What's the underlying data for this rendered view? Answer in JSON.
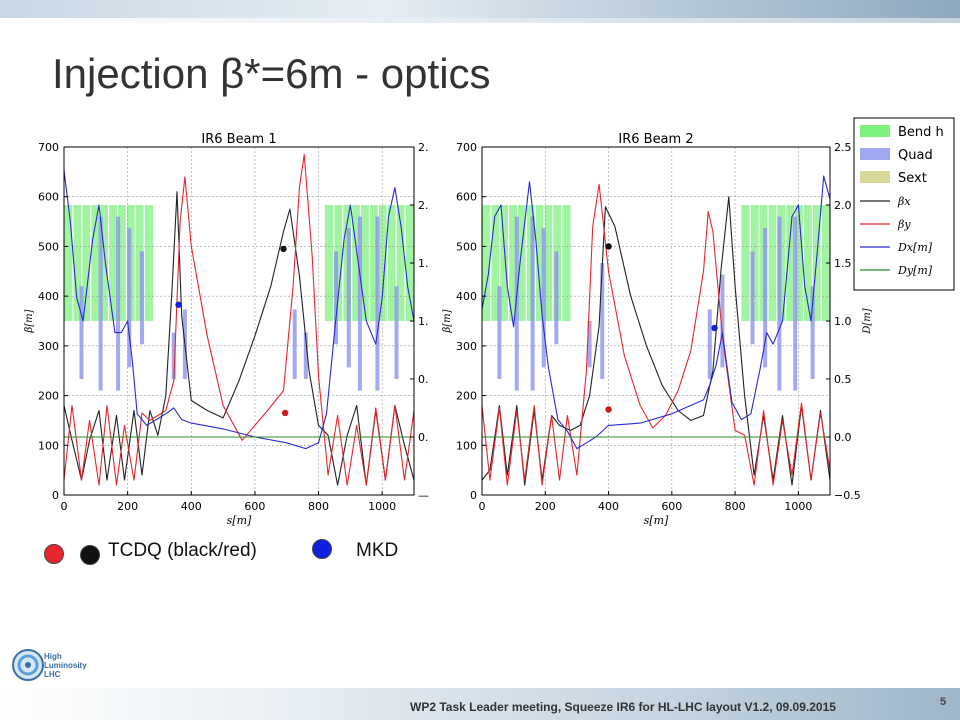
{
  "slide": {
    "title": "Injection β*=6m - optics",
    "footer": "WP2 Task Leader meeting, Squeeze IR6 for HL-LHC layout V1.2, 09.09.2015",
    "page_number": "5",
    "logo_text": [
      "High",
      "Luminosity",
      "LHC"
    ]
  },
  "marker_legend": {
    "tcdq_label": "TCDQ (black/red)",
    "mkd_label": "MKD",
    "colors": {
      "red": "#e8262b",
      "black": "#111111",
      "blue": "#1020e0"
    }
  },
  "legend": {
    "entries": [
      {
        "label": "Bend h",
        "kind": "patch",
        "color": "#7ef07e"
      },
      {
        "label": "Quad",
        "kind": "patch",
        "color": "#9fa8f0"
      },
      {
        "label": "Sext",
        "kind": "patch",
        "color": "#d8d89a"
      },
      {
        "label": "βx",
        "kind": "line",
        "color": "#222222"
      },
      {
        "label": "βy",
        "kind": "line",
        "color": "#e8262b"
      },
      {
        "label": "Dx[m]",
        "kind": "line",
        "color": "#2a2ad0"
      },
      {
        "label": "Dy[m]",
        "kind": "line",
        "color": "#2e8b2e"
      }
    ]
  },
  "chart_data": [
    {
      "type": "line",
      "title": "IR6 Beam 1",
      "xlabel": "s[m]",
      "ylabel": "β[m]",
      "y2label": "",
      "xlim": [
        0,
        1100
      ],
      "ylim": [
        0,
        700
      ],
      "y2lim": [
        -0.5,
        2.5
      ],
      "xticks": [
        "0",
        "200",
        "400",
        "600",
        "800",
        "1000"
      ],
      "yticks": [
        "0",
        "100",
        "200",
        "300",
        "400",
        "500",
        "600",
        "700"
      ],
      "y2ticks": [
        "—",
        "0.",
        "0.",
        "1.",
        "1.",
        "2.",
        "2."
      ],
      "grid": true,
      "bends": [
        [
          0,
          280
        ],
        [
          820,
          1100
        ]
      ],
      "quads": [
        {
          "s": 55,
          "top": 1.3,
          "bottom": 0.5,
          "len": 6
        },
        {
          "s": 115,
          "top": 1.9,
          "bottom": 0.4,
          "len": 6
        },
        {
          "s": 170,
          "top": 1.9,
          "bottom": 0.4,
          "len": 6
        },
        {
          "s": 205,
          "top": 1.8,
          "bottom": 0.6,
          "len": 6
        },
        {
          "s": 245,
          "top": 1.6,
          "bottom": 0.8,
          "len": 6
        },
        {
          "s": 345,
          "top": 0.9,
          "bottom": 0.5,
          "len": 10
        },
        {
          "s": 380,
          "top": 1.1,
          "bottom": 0.5,
          "len": 8
        },
        {
          "s": 725,
          "top": 1.1,
          "bottom": 0.5,
          "len": 8
        },
        {
          "s": 760,
          "top": 0.9,
          "bottom": 0.5,
          "len": 10
        },
        {
          "s": 855,
          "top": 1.6,
          "bottom": 0.8,
          "len": 6
        },
        {
          "s": 895,
          "top": 1.8,
          "bottom": 0.6,
          "len": 6
        },
        {
          "s": 930,
          "top": 1.9,
          "bottom": 0.4,
          "len": 6
        },
        {
          "s": 985,
          "top": 1.9,
          "bottom": 0.4,
          "len": 6
        },
        {
          "s": 1045,
          "top": 1.3,
          "bottom": 0.5,
          "len": 6
        }
      ],
      "series": [
        {
          "key": "betx",
          "axis": "left",
          "color": "#222222",
          "x": [
            0,
            25,
            55,
            80,
            110,
            135,
            165,
            190,
            220,
            245,
            270,
            295,
            320,
            340,
            355,
            370,
            400,
            450,
            500,
            550,
            600,
            650,
            690,
            710,
            740,
            770,
            800,
            830,
            860,
            890,
            920,
            950,
            980,
            1010,
            1040,
            1070,
            1100
          ],
          "y": [
            180,
            110,
            30,
            110,
            170,
            30,
            160,
            30,
            170,
            40,
            170,
            120,
            200,
            420,
            610,
            360,
            190,
            170,
            155,
            230,
            320,
            420,
            530,
            575,
            440,
            250,
            140,
            120,
            20,
            120,
            180,
            20,
            170,
            30,
            180,
            100,
            30
          ]
        },
        {
          "key": "bety",
          "axis": "left",
          "color": "#e8262b",
          "x": [
            0,
            25,
            55,
            80,
            110,
            135,
            165,
            190,
            220,
            245,
            270,
            295,
            320,
            345,
            365,
            380,
            400,
            450,
            500,
            560,
            600,
            640,
            690,
            720,
            740,
            755,
            780,
            800,
            830,
            860,
            890,
            920,
            950,
            980,
            1010,
            1040,
            1070,
            1100
          ],
          "y": [
            30,
            180,
            30,
            150,
            20,
            180,
            20,
            140,
            30,
            165,
            150,
            160,
            170,
            230,
            550,
            640,
            500,
            320,
            180,
            110,
            140,
            170,
            210,
            420,
            620,
            685,
            480,
            240,
            40,
            160,
            20,
            140,
            20,
            175,
            30,
            180,
            30,
            170
          ]
        },
        {
          "key": "dx",
          "axis": "right",
          "color": "#2a2ad0",
          "x": [
            0,
            20,
            40,
            60,
            90,
            110,
            130,
            160,
            180,
            200,
            215,
            230,
            260,
            290,
            320,
            345,
            370,
            400,
            500,
            600,
            700,
            760,
            800,
            825,
            850,
            880,
            900,
            920,
            950,
            980,
            1000,
            1020,
            1040,
            1060,
            1080,
            1100
          ],
          "y": [
            2.3,
            1.85,
            1.2,
            1.0,
            1.7,
            2.0,
            1.5,
            0.9,
            0.9,
            1.0,
            0.65,
            0.2,
            0.1,
            0.15,
            0.2,
            0.25,
            0.15,
            0.12,
            0.07,
            0.0,
            -0.05,
            -0.1,
            -0.05,
            0.2,
            0.9,
            1.7,
            2.0,
            1.6,
            1.0,
            0.8,
            1.2,
            1.9,
            2.15,
            1.8,
            1.3,
            1.0
          ]
        },
        {
          "key": "dy",
          "axis": "right",
          "color": "#2e8b2e",
          "x": [
            0,
            1100
          ],
          "y": [
            0.0,
            0.0
          ]
        }
      ],
      "markers": [
        {
          "s": 360,
          "axis": "right",
          "value": 1.14,
          "color": "#1020e0"
        },
        {
          "s": 690,
          "axis": "left",
          "value": 495,
          "color": "#111111"
        },
        {
          "s": 695,
          "axis": "left",
          "value": 165,
          "color": "#cc1a1a"
        }
      ]
    },
    {
      "type": "line",
      "title": "IR6 Beam 2",
      "xlabel": "s[m]",
      "ylabel": "β[m]",
      "y2label": "D[m]",
      "xlim": [
        0,
        1100
      ],
      "ylim": [
        0,
        700
      ],
      "y2lim": [
        -0.5,
        2.5
      ],
      "xticks": [
        "0",
        "200",
        "400",
        "600",
        "800",
        "1000"
      ],
      "yticks": [
        "0",
        "100",
        "200",
        "300",
        "400",
        "500",
        "600",
        "700"
      ],
      "y2ticks": [
        "−0.5",
        "0.0",
        "0.5",
        "1.0",
        "1.5",
        "2.0",
        "2.5"
      ],
      "grid": true,
      "bends": [
        [
          0,
          280
        ],
        [
          820,
          1100
        ]
      ],
      "quads": [
        {
          "s": 55,
          "top": 1.3,
          "bottom": 0.5,
          "len": 6
        },
        {
          "s": 110,
          "top": 1.9,
          "bottom": 0.4,
          "len": 6
        },
        {
          "s": 160,
          "top": 1.9,
          "bottom": 0.4,
          "len": 6
        },
        {
          "s": 195,
          "top": 1.8,
          "bottom": 0.6,
          "len": 6
        },
        {
          "s": 235,
          "top": 1.6,
          "bottom": 0.8,
          "len": 6
        },
        {
          "s": 340,
          "top": 1.0,
          "bottom": 0.6,
          "len": 10
        },
        {
          "s": 380,
          "top": 1.5,
          "bottom": 0.5,
          "len": 8
        },
        {
          "s": 720,
          "top": 1.1,
          "bottom": 0.5,
          "len": 8
        },
        {
          "s": 760,
          "top": 1.4,
          "bottom": 0.6,
          "len": 10
        },
        {
          "s": 855,
          "top": 1.6,
          "bottom": 0.8,
          "len": 6
        },
        {
          "s": 895,
          "top": 1.8,
          "bottom": 0.6,
          "len": 6
        },
        {
          "s": 940,
          "top": 1.9,
          "bottom": 0.4,
          "len": 6
        },
        {
          "s": 990,
          "top": 1.9,
          "bottom": 0.4,
          "len": 6
        },
        {
          "s": 1045,
          "top": 1.3,
          "bottom": 0.5,
          "len": 6
        }
      ],
      "series": [
        {
          "key": "betx",
          "axis": "left",
          "color": "#222222",
          "x": [
            0,
            25,
            55,
            80,
            110,
            135,
            165,
            190,
            220,
            245,
            280,
            310,
            340,
            370,
            390,
            420,
            470,
            520,
            570,
            620,
            660,
            700,
            730,
            755,
            780,
            800,
            830,
            860,
            890,
            920,
            950,
            980,
            1010,
            1040,
            1070,
            1100
          ],
          "y": [
            30,
            50,
            180,
            40,
            180,
            20,
            170,
            30,
            160,
            140,
            130,
            140,
            200,
            340,
            580,
            540,
            400,
            300,
            220,
            170,
            150,
            160,
            250,
            450,
            600,
            420,
            200,
            40,
            160,
            30,
            160,
            20,
            180,
            30,
            170,
            30
          ]
        },
        {
          "key": "bety",
          "axis": "left",
          "color": "#e8262b",
          "x": [
            0,
            25,
            55,
            80,
            110,
            135,
            165,
            190,
            220,
            245,
            270,
            300,
            330,
            350,
            370,
            400,
            450,
            500,
            540,
            580,
            620,
            660,
            700,
            715,
            730,
            760,
            800,
            830,
            860,
            890,
            920,
            950,
            980,
            1010,
            1040,
            1070,
            1100
          ],
          "y": [
            180,
            30,
            175,
            20,
            170,
            30,
            180,
            20,
            160,
            30,
            160,
            40,
            250,
            540,
            625,
            450,
            280,
            180,
            135,
            160,
            210,
            290,
            450,
            570,
            530,
            320,
            130,
            120,
            20,
            170,
            20,
            150,
            40,
            185,
            30,
            165,
            50
          ]
        },
        {
          "key": "dx",
          "axis": "right",
          "color": "#2a2ad0",
          "x": [
            0,
            20,
            40,
            60,
            80,
            100,
            120,
            150,
            170,
            190,
            210,
            240,
            270,
            300,
            330,
            360,
            400,
            500,
            600,
            700,
            720,
            740,
            760,
            790,
            820,
            850,
            880,
            900,
            920,
            950,
            980,
            1000,
            1020,
            1040,
            1060,
            1080,
            1100
          ],
          "y": [
            1.1,
            1.4,
            1.9,
            2.0,
            1.3,
            0.95,
            1.5,
            2.2,
            1.7,
            1.05,
            0.6,
            0.15,
            0.05,
            -0.1,
            -0.05,
            0.0,
            0.1,
            0.12,
            0.2,
            0.32,
            0.45,
            0.62,
            0.9,
            0.3,
            0.15,
            0.2,
            0.6,
            0.9,
            0.8,
            1.0,
            1.9,
            2.0,
            1.3,
            1.0,
            1.6,
            2.25,
            2.05
          ]
        },
        {
          "key": "dy",
          "axis": "right",
          "color": "#2e8b2e",
          "x": [
            0,
            1100
          ],
          "y": [
            0.0,
            0.0
          ]
        }
      ],
      "markers": [
        {
          "s": 400,
          "axis": "left",
          "value": 500,
          "color": "#111111"
        },
        {
          "s": 400,
          "axis": "left",
          "value": 172,
          "color": "#cc1a1a"
        },
        {
          "s": 735,
          "axis": "right",
          "value": 0.94,
          "color": "#1020e0"
        }
      ]
    }
  ]
}
